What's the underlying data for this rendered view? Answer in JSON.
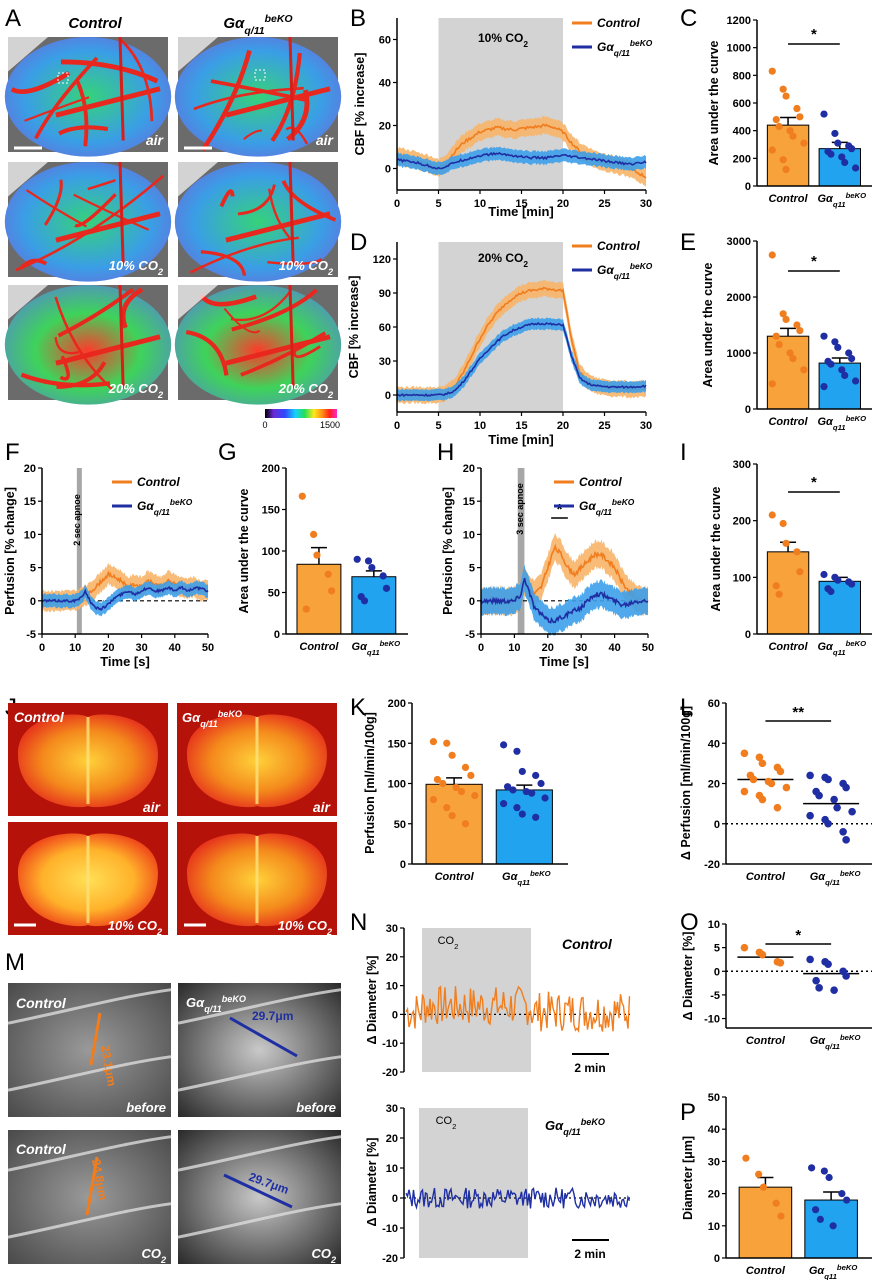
{
  "colors": {
    "control_line": "#f07d1e",
    "control_band": "#f7b469",
    "ko_line": "#1f2fa3",
    "ko_band": "#3da0ea",
    "control_bar": "#f7a23b",
    "ko_bar": "#21a3ef",
    "control_dot": "#f07d1e",
    "ko_dot": "#1f2fa3",
    "shade": "#d3d3d3"
  },
  "labels": {
    "control": "Control",
    "ko_main": "Gα",
    "ko_sub_q11": "q/11",
    "ko_sub_q11b": "q11",
    "ko_sup": "beKO",
    "air": "air",
    "co2_10": "10% CO",
    "co2_20": "20% CO",
    "co2": "CO",
    "two": "2",
    "before": "before",
    "apnoe2": "2 sec apnoe",
    "apnoe3": "3 sec apnoe",
    "star": "*",
    "star2": "**",
    "scale_min": "2 min",
    "cb_min": "0",
    "cb_max": "1500",
    "m_ctrl_before": "23.1μm",
    "m_ctrl_co2": "24.8μm",
    "m_ko_before": "29.7μm",
    "m_ko_co2": "29.7μm",
    "ylabel_cbf": "CBF [% increase]",
    "ylabel_auc": "Area under the curve",
    "ylabel_perf_change": "Perfusion [% change]",
    "ylabel_perf": "Perfusion [ml/min/100g]",
    "ylabel_dperf": "Perfusion [ml/min/100g]",
    "ylabel_ddiam": "Diameter [%]",
    "ylabel_diam": "Diameter [μm]",
    "delta": "Δ",
    "xlabel_min": "Time [min]",
    "xlabel_s": "Time [s]"
  },
  "panel_letters": [
    "A",
    "B",
    "C",
    "D",
    "E",
    "F",
    "G",
    "H",
    "I",
    "J",
    "K",
    "L",
    "M",
    "N",
    "O",
    "P"
  ],
  "chart_data": [
    {
      "id": "B",
      "type": "line",
      "xlabel": "Time [min]",
      "ylabel": "CBF [% increase]",
      "xlim": [
        0,
        30
      ],
      "ylim": [
        -10,
        70
      ],
      "xticks": [
        0,
        5,
        10,
        15,
        20,
        25,
        30
      ],
      "yticks": [
        0,
        20,
        40,
        60
      ],
      "shade": [
        5,
        20
      ],
      "shade_label": "10% CO2",
      "series": [
        {
          "name": "Control",
          "x": [
            0,
            2,
            4,
            5,
            6,
            7,
            8,
            10,
            12,
            14,
            16,
            18,
            19,
            20,
            21,
            22,
            24,
            26,
            28,
            30
          ],
          "y": [
            6,
            4,
            2,
            0,
            3,
            8,
            12,
            17,
            19,
            18,
            19,
            20,
            19,
            17,
            12,
            8,
            4,
            2,
            0,
            -4
          ],
          "err": 4
        },
        {
          "name": "Gαq/11beKO",
          "x": [
            0,
            2,
            4,
            5,
            6,
            7,
            8,
            10,
            12,
            14,
            16,
            18,
            20,
            22,
            24,
            26,
            28,
            30
          ],
          "y": [
            4,
            3,
            1,
            0,
            1,
            3,
            4,
            6,
            7,
            6,
            5,
            5,
            6,
            5,
            4,
            3,
            2,
            3
          ],
          "err": 3
        }
      ]
    },
    {
      "id": "C",
      "type": "bar",
      "ylabel": "Area under the curve",
      "ylim": [
        0,
        1200
      ],
      "yticks": [
        0,
        200,
        400,
        600,
        800,
        1000,
        1200
      ],
      "categories": [
        "Control",
        "Gαq11beKO"
      ],
      "means": [
        440,
        270
      ],
      "sem": [
        55,
        45
      ],
      "points": [
        [
          830,
          700,
          650,
          560,
          500,
          480,
          430,
          400,
          360,
          310,
          260,
          190,
          120
        ],
        [
          520,
          380,
          310,
          290,
          270,
          250,
          230,
          210,
          170,
          130
        ]
      ],
      "sig": "*"
    },
    {
      "id": "D",
      "type": "line",
      "xlabel": "Time [min]",
      "ylabel": "CBF [% increase]",
      "xlim": [
        0,
        30
      ],
      "ylim": [
        -15,
        135
      ],
      "xticks": [
        0,
        5,
        10,
        15,
        20,
        25,
        30
      ],
      "yticks": [
        0,
        30,
        60,
        90,
        120
      ],
      "shade": [
        5,
        20
      ],
      "shade_label": "20% CO2",
      "series": [
        {
          "name": "Control",
          "x": [
            0,
            2,
            4,
            5,
            6,
            7,
            8,
            9,
            10,
            11,
            12,
            13,
            14,
            15,
            16,
            17,
            18,
            19,
            20,
            21,
            22,
            23,
            24,
            26,
            28,
            30
          ],
          "y": [
            0,
            0,
            0,
            0,
            2,
            8,
            20,
            35,
            50,
            62,
            72,
            80,
            86,
            90,
            92,
            93,
            94,
            93,
            92,
            50,
            20,
            12,
            8,
            6,
            5,
            5
          ],
          "err": 7
        },
        {
          "name": "Gαq/11beKO",
          "x": [
            0,
            2,
            4,
            5,
            6,
            7,
            8,
            9,
            10,
            11,
            12,
            13,
            14,
            15,
            16,
            17,
            18,
            19,
            20,
            21,
            22,
            23,
            24,
            26,
            28,
            30
          ],
          "y": [
            0,
            0,
            0,
            0,
            1,
            4,
            12,
            22,
            32,
            40,
            47,
            53,
            57,
            60,
            62,
            63,
            63,
            62,
            62,
            35,
            15,
            10,
            8,
            7,
            7,
            8
          ],
          "err": 5
        }
      ]
    },
    {
      "id": "E",
      "type": "bar",
      "ylabel": "Area under the curve",
      "ylim": [
        0,
        3000
      ],
      "yticks": [
        0,
        1000,
        2000,
        3000
      ],
      "categories": [
        "Control",
        "Gαq11beKO"
      ],
      "means": [
        1300,
        820
      ],
      "sem": [
        140,
        90
      ],
      "points": [
        [
          2750,
          1700,
          1600,
          1500,
          1400,
          1300,
          1150,
          1000,
          900,
          700,
          450
        ],
        [
          1300,
          1200,
          1100,
          1000,
          900,
          850,
          800,
          700,
          600,
          500,
          400
        ]
      ],
      "sig": "*"
    },
    {
      "id": "F",
      "type": "line",
      "xlabel": "Time [s]",
      "ylabel": "Perfusion [% change]",
      "xlim": [
        0,
        50
      ],
      "ylim": [
        -5,
        20
      ],
      "xticks": [
        0,
        10,
        20,
        30,
        40,
        50
      ],
      "yticks": [
        -5,
        0,
        5,
        10,
        15,
        20
      ],
      "bar": [
        10.5,
        12
      ],
      "bar_label": "2 sec apnoe",
      "series": [
        {
          "name": "Control",
          "x": [
            0,
            5,
            10,
            12,
            14,
            16,
            18,
            20,
            22,
            24,
            26,
            28,
            30,
            32,
            34,
            36,
            38,
            40,
            42,
            44,
            46,
            48,
            50
          ],
          "y": [
            0,
            0,
            0,
            0.5,
            1,
            2,
            3,
            4,
            3.5,
            3,
            2,
            2.5,
            2,
            3,
            2.5,
            2,
            3,
            2.5,
            2,
            2,
            2,
            1.5,
            1.5
          ],
          "err": 1.5
        },
        {
          "name": "Gαq/11beKO",
          "x": [
            0,
            5,
            10,
            12,
            13,
            14,
            15,
            16,
            18,
            20,
            22,
            24,
            26,
            28,
            30,
            32,
            34,
            36,
            38,
            40,
            42,
            44,
            46,
            48,
            50
          ],
          "y": [
            0,
            0,
            0,
            0.5,
            1.5,
            0.5,
            -0.5,
            -1,
            -1.2,
            -0.5,
            0.5,
            1,
            1.5,
            1,
            1.5,
            2,
            1.5,
            1.5,
            2,
            1.5,
            2,
            1.5,
            2,
            1.8,
            1.5
          ],
          "err": 1
        }
      ]
    },
    {
      "id": "G",
      "type": "bar",
      "ylabel": "Area under the curve",
      "ylim": [
        0,
        200
      ],
      "yticks": [
        0,
        50,
        100,
        150,
        200
      ],
      "categories": [
        "Control",
        "Gαq11beKO"
      ],
      "means": [
        84,
        69
      ],
      "sem": [
        20,
        7
      ],
      "points": [
        [
          166,
          120,
          95,
          72,
          52,
          30
        ],
        [
          90,
          88,
          80,
          70,
          55,
          45,
          40
        ]
      ]
    },
    {
      "id": "H",
      "type": "line",
      "xlabel": "Time [s]",
      "ylabel": "Perfusion [% change]",
      "xlim": [
        0,
        50
      ],
      "ylim": [
        -5,
        20
      ],
      "xticks": [
        0,
        10,
        20,
        30,
        40,
        50
      ],
      "yticks": [
        -5,
        0,
        5,
        10,
        15,
        20
      ],
      "bar": [
        11,
        13
      ],
      "bar_label": "3 sec apnoe",
      "sig": "*",
      "sig_range": [
        21,
        26
      ],
      "series": [
        {
          "name": "Control",
          "x": [
            0,
            5,
            10,
            12,
            13,
            14,
            16,
            18,
            20,
            22,
            24,
            26,
            28,
            30,
            32,
            34,
            36,
            38,
            40,
            42,
            44,
            46,
            48,
            50
          ],
          "y": [
            0,
            0,
            0,
            1,
            3,
            2,
            1,
            2,
            5,
            8,
            7,
            5,
            4,
            5,
            6,
            7,
            7,
            6,
            5,
            3,
            1.5,
            0.5,
            0,
            0
          ],
          "err": 2
        },
        {
          "name": "Gαq/11beKO",
          "x": [
            0,
            5,
            10,
            12,
            13,
            14,
            15,
            16,
            18,
            20,
            22,
            24,
            26,
            28,
            30,
            32,
            34,
            36,
            38,
            40,
            42,
            44,
            46,
            48,
            50
          ],
          "y": [
            0,
            0,
            0,
            1,
            3.5,
            2,
            0.5,
            -1,
            -2,
            -3,
            -3,
            -2.5,
            -2,
            -1.5,
            -1,
            0,
            1,
            1,
            0.5,
            0,
            -0.5,
            -0.5,
            0,
            0,
            0
          ],
          "err": 2
        }
      ]
    },
    {
      "id": "I",
      "type": "bar",
      "ylabel": "Area under the curve",
      "ylim": [
        0,
        300
      ],
      "yticks": [
        0,
        100,
        200,
        300
      ],
      "categories": [
        "Control",
        "Gαq11beKO"
      ],
      "means": [
        145,
        93
      ],
      "sem": [
        17,
        7
      ],
      "points": [
        [
          210,
          195,
          160,
          145,
          110,
          85,
          70
        ],
        [
          105,
          100,
          95,
          92,
          88,
          80,
          75
        ]
      ],
      "sig": "*"
    },
    {
      "id": "K",
      "type": "bar",
      "ylabel": "Perfusion [ml/min/100g]",
      "ylim": [
        0,
        200
      ],
      "yticks": [
        0,
        50,
        100,
        150,
        200
      ],
      "categories": [
        "Control",
        "Gαq11beKO"
      ],
      "means": [
        99,
        92
      ],
      "sem": [
        8,
        6
      ],
      "points": [
        [
          152,
          150,
          135,
          120,
          110,
          105,
          100,
          95,
          90,
          85,
          80,
          70,
          60,
          50
        ],
        [
          148,
          140,
          115,
          110,
          100,
          96,
          92,
          90,
          88,
          82,
          75,
          70,
          62,
          58
        ]
      ]
    },
    {
      "id": "L",
      "type": "scatter",
      "ylabel": "Δ Perfusion [ml/min/100g]",
      "ylim": [
        -20,
        60
      ],
      "yticks": [
        -20,
        0,
        20,
        40,
        60
      ],
      "categories": [
        "Control",
        "Gαq11beKO"
      ],
      "means": [
        22,
        10
      ],
      "points": [
        [
          35,
          33,
          30,
          28,
          26,
          24,
          22,
          21,
          20,
          18,
          16,
          14,
          12,
          8
        ],
        [
          24,
          23,
          22,
          20,
          18,
          16,
          14,
          12,
          8,
          6,
          4,
          2,
          0,
          -4,
          -8
        ]
      ],
      "sig": "**"
    },
    {
      "id": "N_control",
      "type": "line",
      "ylabel": "Δ Diameter [%]",
      "ylim": [
        -20,
        30
      ],
      "yticks": [
        -20,
        -10,
        0,
        10,
        20,
        30
      ],
      "title": "Control",
      "seed": 7
    },
    {
      "id": "N_ko",
      "type": "line",
      "ylabel": "Δ Diameter [%]",
      "ylim": [
        -20,
        30
      ],
      "yticks": [
        -20,
        -10,
        0,
        10,
        20,
        30
      ],
      "title": "Gαq/11beKO",
      "seed": 13
    },
    {
      "id": "O",
      "type": "scatter",
      "ylabel": "Δ Diameter [%]",
      "ylim": [
        -12,
        10
      ],
      "yticks": [
        -10,
        -5,
        0,
        5,
        10
      ],
      "categories": [
        "Control",
        "Gαq11beKO"
      ],
      "means": [
        3,
        -0.5
      ],
      "points": [
        [
          5,
          4,
          3.5,
          2,
          1.8
        ],
        [
          2.5,
          2,
          1.5,
          0,
          -1,
          -2,
          -3.5,
          -4
        ]
      ],
      "sig": "*"
    },
    {
      "id": "P",
      "type": "bar",
      "ylabel": "Diameter [μm]",
      "ylim": [
        0,
        50
      ],
      "yticks": [
        0,
        10,
        20,
        30,
        40,
        50
      ],
      "categories": [
        "Control",
        "Gαq11beKO"
      ],
      "means": [
        22,
        18
      ],
      "sem": [
        3,
        2.5
      ],
      "points": [
        [
          31,
          26,
          22,
          17,
          13
        ],
        [
          28,
          27,
          25,
          20,
          18,
          15,
          12,
          10
        ]
      ]
    }
  ]
}
